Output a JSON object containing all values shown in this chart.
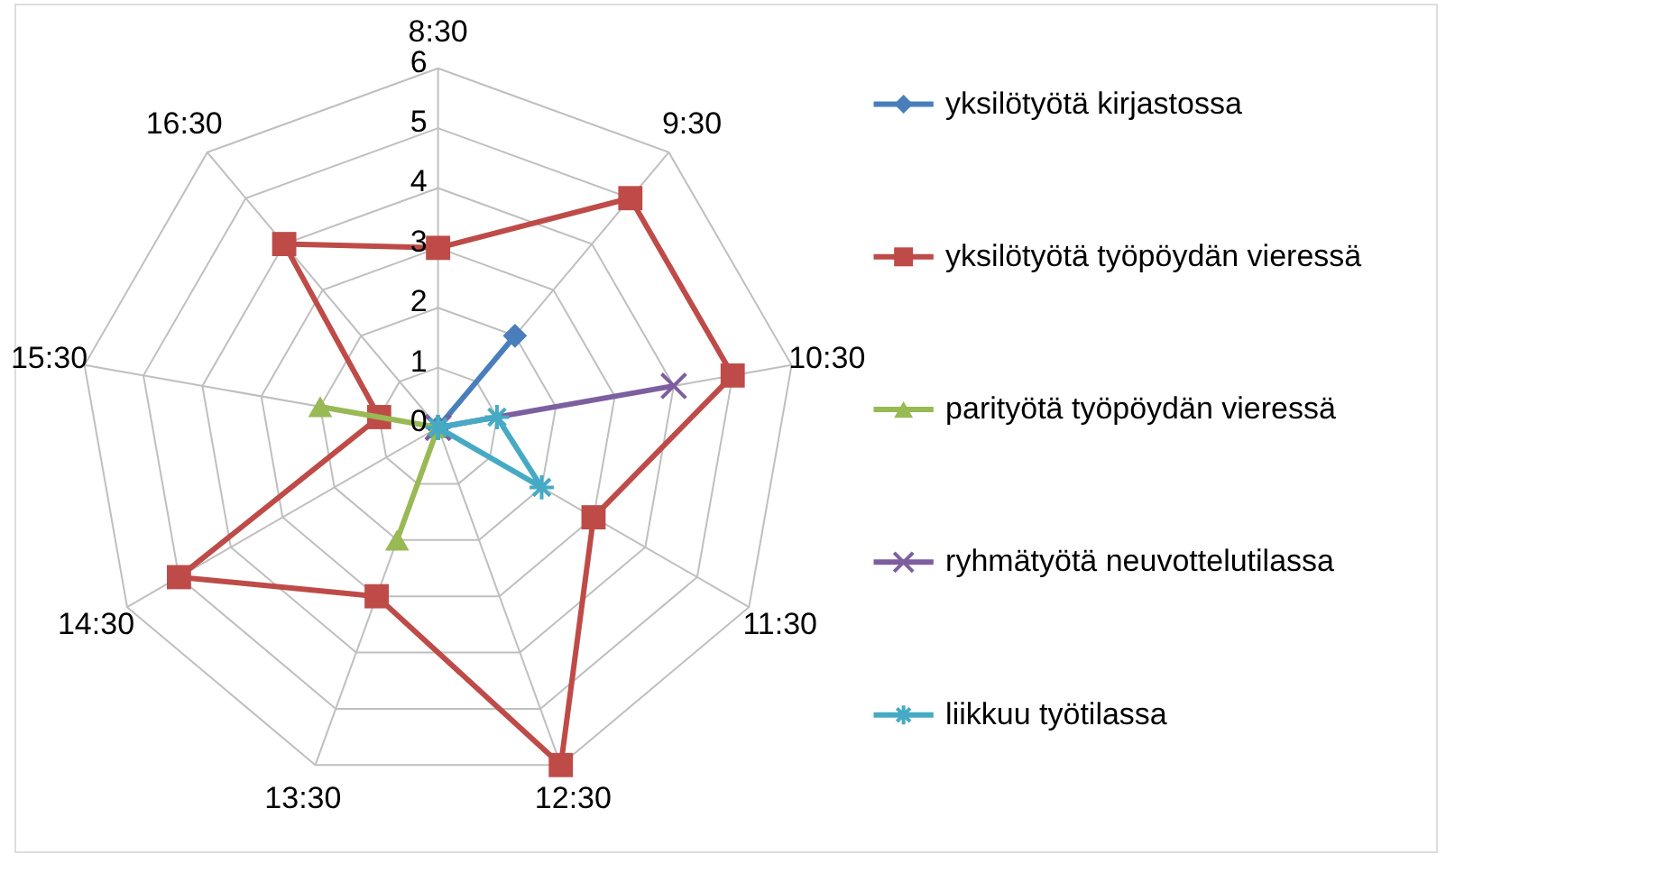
{
  "chart_data": {
    "type": "radar",
    "categories": [
      "8:30",
      "9:30",
      "10:30",
      "11:30",
      "12:30",
      "13:30",
      "14:30",
      "15:30",
      "16:30"
    ],
    "ylim": [
      0,
      6
    ],
    "yticks": [
      0,
      1,
      2,
      3,
      4,
      5,
      6
    ],
    "grid": true,
    "legend": "right",
    "series": [
      {
        "name": "yksilötyötä kirjastossa",
        "color": "#4a7ebb",
        "marker": "diamond",
        "values": [
          0,
          2,
          0,
          0,
          0,
          0,
          0,
          0,
          0
        ]
      },
      {
        "name": "yksilötyötä työpöydän vieressä",
        "color": "#be4b48",
        "marker": "square",
        "values": [
          3,
          5,
          5,
          3,
          6,
          3,
          5,
          1,
          4
        ]
      },
      {
        "name": "parityötä työpöydän vieressä",
        "color": "#98b954",
        "marker": "triangle",
        "values": [
          0,
          0,
          0,
          0,
          0,
          2,
          0,
          2,
          0
        ]
      },
      {
        "name": "ryhmätyötä neuvottelutilassa",
        "color": "#7d5fa0",
        "marker": "cross",
        "values": [
          0,
          0,
          4,
          0,
          0,
          0,
          0,
          0,
          0
        ]
      },
      {
        "name": "liikkuu työtilassa",
        "color": "#46aac5",
        "marker": "star",
        "values": [
          0,
          0,
          1,
          2,
          0,
          0,
          0,
          0,
          0
        ]
      }
    ]
  }
}
